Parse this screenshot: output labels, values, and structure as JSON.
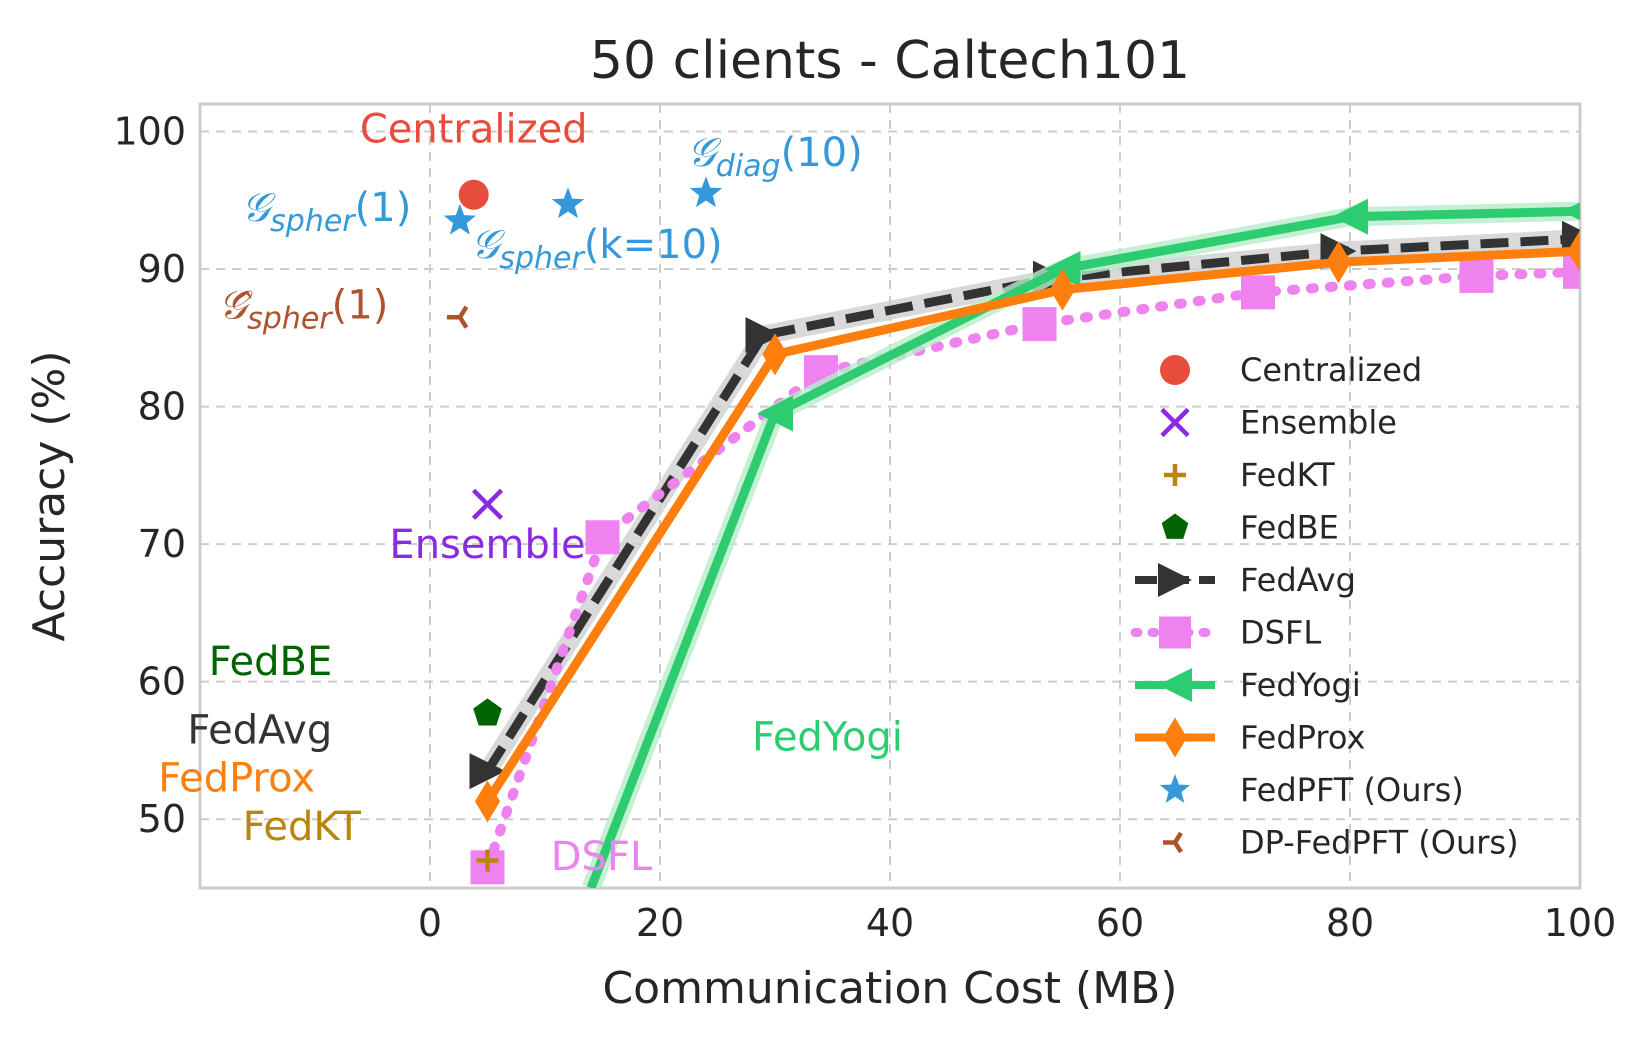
{
  "chart_data": {
    "type": "line",
    "title": "50 clients - Caltech101",
    "xlabel": "Communication Cost (MB)",
    "ylabel": "Accuracy (%)",
    "xlim": [
      -20,
      100
    ],
    "ylim": [
      45,
      102
    ],
    "xticks": [
      0,
      20,
      40,
      60,
      80,
      100
    ],
    "yticks": [
      50,
      60,
      70,
      80,
      90,
      100
    ],
    "grid": true,
    "legend_position": "center-right",
    "colors": {
      "centralized": "#e74c3c",
      "ensemble": "#8a2be2",
      "fedkt": "#b8860b",
      "fedbe": "#006400",
      "fedavg": "#333333",
      "dsfl": "#ee82ee",
      "fedyogi": "#2ecc71",
      "fedprox": "#ff7f0e",
      "fedpft": "#3498db",
      "dpfedpft": "#b0522d"
    },
    "series": [
      {
        "name": "FedAvg",
        "color": "#333333",
        "marker": "triangle-right",
        "x": [
          5,
          29,
          54,
          79,
          100
        ],
        "y": [
          53.5,
          85.2,
          89.3,
          91.3,
          92.2
        ]
      },
      {
        "name": "DSFL",
        "color": "#ee82ee",
        "marker": "square",
        "x": [
          5,
          15,
          34,
          53,
          72,
          91,
          100
        ],
        "y": [
          46.5,
          70.5,
          82.5,
          86.0,
          88.3,
          89.5,
          89.8
        ]
      },
      {
        "name": "FedYogi",
        "color": "#2ecc71",
        "marker": "triangle-left",
        "x": [
          14,
          30,
          55,
          80,
          100
        ],
        "y": [
          45,
          79.5,
          90.0,
          93.8,
          94.2
        ]
      },
      {
        "name": "FedProx",
        "color": "#ff7f0e",
        "marker": "thin-diamond",
        "x": [
          5,
          30,
          55,
          79,
          100
        ],
        "y": [
          51.3,
          83.8,
          88.5,
          90.5,
          91.3
        ]
      }
    ],
    "points": [
      {
        "name": "Centralized",
        "x": 3.8,
        "y": 95.4
      },
      {
        "name": "Ensemble",
        "x": 5,
        "y": 72.9
      },
      {
        "name": "FedKT",
        "x": 5,
        "y": 47
      },
      {
        "name": "FedBE",
        "x": 5,
        "y": 57.7
      },
      {
        "name": "FedPFT (Ours) k=1",
        "x": 2.6,
        "y": 93.5
      },
      {
        "name": "FedPFT (Ours) k=10",
        "x": 12,
        "y": 94.7
      },
      {
        "name": "FedPFT (Ours) diag",
        "x": 24,
        "y": 95.5
      },
      {
        "name": "DP-FedPFT (Ours)",
        "x": 2.6,
        "y": 86.5
      }
    ],
    "annotations": [
      {
        "key": "centralized",
        "text": "Centralized",
        "x": 3.8,
        "y": 99.2
      },
      {
        "key": "gspher1",
        "base": "𝒢",
        "sub": "spher",
        "suffix": "(1)",
        "x": -9,
        "y": 93.5
      },
      {
        "key": "gspherk10",
        "base": "𝒢",
        "sub": "spher",
        "suffix": "(k=10)",
        "x": 14.5,
        "y": 90.8
      },
      {
        "key": "gdiag10",
        "base": "𝒢",
        "sub": "diag",
        "suffix": "(10)",
        "x": 30,
        "y": 97.5
      },
      {
        "key": "dpg",
        "base": "𝒢̂",
        "sub": "spher",
        "suffix": "(1)",
        "x": -11,
        "y": 86.4
      },
      {
        "key": "ensemble",
        "text": "Ensemble",
        "x": 5,
        "y": 69
      },
      {
        "key": "fedbe",
        "text": "FedBE",
        "x": -8.5,
        "y": 60.5
      },
      {
        "key": "fedavg",
        "text": "FedAvg",
        "x": -8.5,
        "y": 55.5
      },
      {
        "key": "fedprox",
        "text": "FedProx",
        "x": -10,
        "y": 52
      },
      {
        "key": "fedkt",
        "text": "FedKT",
        "x": -6,
        "y": 48.5
      },
      {
        "key": "dsfl",
        "text": "DSFL",
        "x": 10.5,
        "y": 46.3
      },
      {
        "key": "fedyogi",
        "text": "FedYogi",
        "x": 28,
        "y": 55
      }
    ],
    "legend": [
      "Centralized",
      "Ensemble",
      "FedKT",
      "FedBE",
      "FedAvg",
      "DSFL",
      "FedYogi",
      "FedProx",
      "FedPFT (Ours)",
      "DP-FedPFT (Ours)"
    ]
  }
}
